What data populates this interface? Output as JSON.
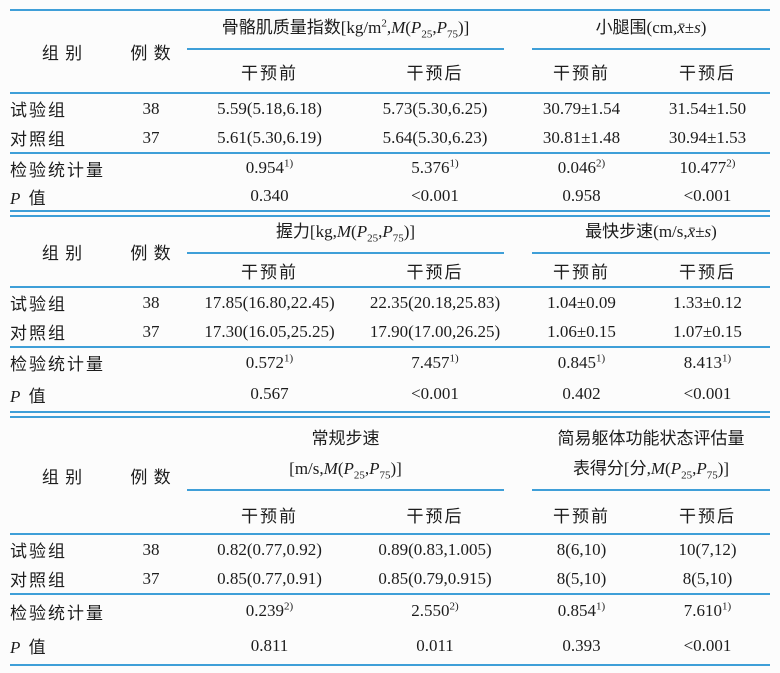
{
  "page": {
    "accent": "#3f9fd8",
    "bg": "#fcfcfc",
    "text_color": "#1c1c1c"
  },
  "table": {
    "sections": [
      {
        "group_col": "组 别",
        "n_col": "例 数",
        "groups": [
          {
            "lines": [
              "骨骼肌质量指数[kg/m^2^,*M*(*P*~25~,*P*~75~)]"
            ]
          },
          {
            "lines": [
              "小腿围(cm,*x̄*±*s*)"
            ]
          }
        ],
        "sub": [
          "干预前",
          "干预后",
          "干预前",
          "干预后"
        ],
        "rows": [
          {
            "label": "试验组",
            "n": "38",
            "c": [
              "5.59(5.18,6.18)",
              "5.73(5.30,6.25)",
              "30.79±1.54",
              "31.54±1.50"
            ]
          },
          {
            "label": "对照组",
            "n": "37",
            "c": [
              "5.61(5.30,6.19)",
              "5.64(5.30,6.23)",
              "30.81±1.48",
              "30.94±1.53"
            ]
          },
          {
            "label": "检验统计量",
            "n": "",
            "c": [
              "0.954^1)^",
              "5.376^1)^",
              "0.046^2)^",
              "10.477^2)^"
            ]
          },
          {
            "label": "*P* 值",
            "n": "",
            "c": [
              "0.340",
              "<0.001",
              "0.958",
              "<0.001"
            ]
          }
        ]
      },
      {
        "group_col": "组 别",
        "n_col": "例 数",
        "groups": [
          {
            "lines": [
              "握力[kg,*M*(*P*~25~,*P*~75~)]"
            ]
          },
          {
            "lines": [
              "最快步速(m/s,*x̄*±*s*)"
            ]
          }
        ],
        "sub": [
          "干预前",
          "干预后",
          "干预前",
          "干预后"
        ],
        "rows": [
          {
            "label": "试验组",
            "n": "38",
            "c": [
              "17.85(16.80,22.45)",
              "22.35(20.18,25.83)",
              "1.04±0.09",
              "1.33±0.12"
            ]
          },
          {
            "label": "对照组",
            "n": "37",
            "c": [
              "17.30(16.05,25.25)",
              "17.90(17.00,26.25)",
              "1.06±0.15",
              "1.07±0.15"
            ]
          },
          {
            "label": "检验统计量",
            "n": "",
            "c": [
              "0.572^1)^",
              "7.457^1)^",
              "0.845^1)^",
              "8.413^1)^"
            ]
          },
          {
            "label": "*P* 值",
            "n": "",
            "c": [
              "0.567",
              "<0.001",
              "0.402",
              "<0.001"
            ]
          }
        ]
      },
      {
        "group_col": "组 别",
        "n_col": "例 数",
        "groups": [
          {
            "lines": [
              "常规步速",
              "[m/s,*M*(*P*~25~,*P*~75~)]"
            ]
          },
          {
            "lines": [
              "简易躯体功能状态评估量",
              "表得分[分,*M*(*P*~25~,*P*~75~)]"
            ]
          }
        ],
        "sub": [
          "干预前",
          "干预后",
          "干预前",
          "干预后"
        ],
        "rows": [
          {
            "label": "试验组",
            "n": "38",
            "c": [
              "0.82(0.77,0.92)",
              "0.89(0.83,1.005)",
              "8(6,10)",
              "10(7,12)"
            ]
          },
          {
            "label": "对照组",
            "n": "37",
            "c": [
              "0.85(0.77,0.91)",
              "0.85(0.79,0.915)",
              "8(5,10)",
              "8(5,10)"
            ]
          },
          {
            "label": "检验统计量",
            "n": "",
            "c": [
              "0.239^2)^",
              "2.550^2)^",
              "0.854^1)^",
              "7.610^1)^"
            ]
          },
          {
            "label": "*P* 值",
            "n": "",
            "c": [
              "0.811",
              "0.011",
              "0.393",
              "<0.001"
            ]
          }
        ]
      }
    ]
  }
}
